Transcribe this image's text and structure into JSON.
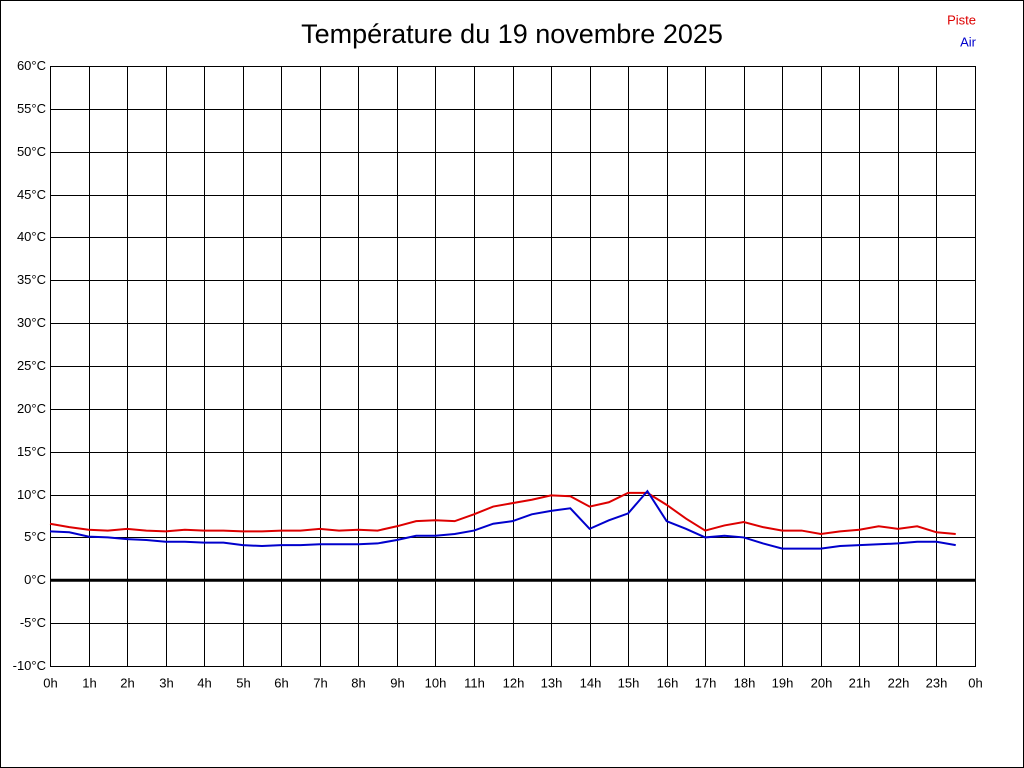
{
  "chart_data": {
    "type": "line",
    "title": "Température du 19 novembre 2025",
    "x": [
      0,
      0.5,
      1,
      1.5,
      2,
      2.5,
      3,
      3.5,
      4,
      4.5,
      5,
      5.5,
      6,
      6.5,
      7,
      7.5,
      8,
      8.5,
      9,
      9.5,
      10,
      10.5,
      11,
      11.5,
      12,
      12.5,
      13,
      13.5,
      14,
      14.5,
      15,
      15.5,
      16,
      16.5,
      17,
      17.5,
      18,
      18.5,
      19,
      19.5,
      20,
      20.5,
      21,
      21.5,
      22,
      22.5,
      23,
      23.5
    ],
    "series": [
      {
        "name": "Piste",
        "color": "#dd0000",
        "values": [
          6.6,
          6.2,
          5.9,
          5.8,
          6.0,
          5.8,
          5.7,
          5.9,
          5.8,
          5.8,
          5.7,
          5.7,
          5.8,
          5.8,
          6.0,
          5.8,
          5.9,
          5.8,
          6.3,
          6.9,
          7.0,
          6.9,
          7.7,
          8.6,
          9.0,
          9.4,
          9.9,
          9.8,
          8.6,
          9.1,
          10.2,
          10.2,
          8.8,
          7.2,
          5.8,
          6.4,
          6.8,
          6.2,
          5.8,
          5.8,
          5.4,
          5.7,
          5.9,
          6.3,
          6.0,
          6.3,
          5.6,
          5.4
        ]
      },
      {
        "name": "Air",
        "color": "#0000cc",
        "values": [
          5.7,
          5.6,
          5.1,
          5.0,
          4.8,
          4.7,
          4.5,
          4.5,
          4.4,
          4.4,
          4.1,
          4.0,
          4.1,
          4.1,
          4.2,
          4.2,
          4.2,
          4.3,
          4.7,
          5.2,
          5.2,
          5.4,
          5.8,
          6.6,
          6.9,
          7.7,
          8.1,
          8.4,
          6.0,
          7.0,
          7.8,
          10.4,
          6.9,
          6.0,
          5.0,
          5.2,
          5.0,
          4.3,
          3.7,
          3.7,
          3.7,
          4.0,
          4.1,
          4.2,
          4.3,
          4.5,
          4.5,
          4.1
        ]
      }
    ],
    "xlim": [
      0,
      24
    ],
    "xticks": [
      {
        "value": 0,
        "label": "0h"
      },
      {
        "value": 1,
        "label": "1h"
      },
      {
        "value": 2,
        "label": "2h"
      },
      {
        "value": 3,
        "label": "3h"
      },
      {
        "value": 4,
        "label": "4h"
      },
      {
        "value": 5,
        "label": "5h"
      },
      {
        "value": 6,
        "label": "6h"
      },
      {
        "value": 7,
        "label": "7h"
      },
      {
        "value": 8,
        "label": "8h"
      },
      {
        "value": 9,
        "label": "9h"
      },
      {
        "value": 10,
        "label": "10h"
      },
      {
        "value": 11,
        "label": "11h"
      },
      {
        "value": 12,
        "label": "12h"
      },
      {
        "value": 13,
        "label": "13h"
      },
      {
        "value": 14,
        "label": "14h"
      },
      {
        "value": 15,
        "label": "15h"
      },
      {
        "value": 16,
        "label": "16h"
      },
      {
        "value": 17,
        "label": "17h"
      },
      {
        "value": 18,
        "label": "18h"
      },
      {
        "value": 19,
        "label": "19h"
      },
      {
        "value": 20,
        "label": "20h"
      },
      {
        "value": 21,
        "label": "21h"
      },
      {
        "value": 22,
        "label": "22h"
      },
      {
        "value": 23,
        "label": "23h"
      },
      {
        "value": 24,
        "label": "0h"
      }
    ],
    "ylim": [
      -10,
      60
    ],
    "yticks": [
      {
        "value": -10,
        "label": "-10°C"
      },
      {
        "value": -5,
        "label": "-5°C"
      },
      {
        "value": 0,
        "label": "0°C"
      },
      {
        "value": 5,
        "label": "5°C"
      },
      {
        "value": 10,
        "label": "10°C"
      },
      {
        "value": 15,
        "label": "15°C"
      },
      {
        "value": 20,
        "label": "20°C"
      },
      {
        "value": 25,
        "label": "25°C"
      },
      {
        "value": 30,
        "label": "30°C"
      },
      {
        "value": 35,
        "label": "35°C"
      },
      {
        "value": 40,
        "label": "40°C"
      },
      {
        "value": 45,
        "label": "45°C"
      },
      {
        "value": 50,
        "label": "50°C"
      },
      {
        "value": 55,
        "label": "55°C"
      },
      {
        "value": 60,
        "label": "60°C"
      }
    ],
    "grid": true,
    "legend": "top-right"
  }
}
